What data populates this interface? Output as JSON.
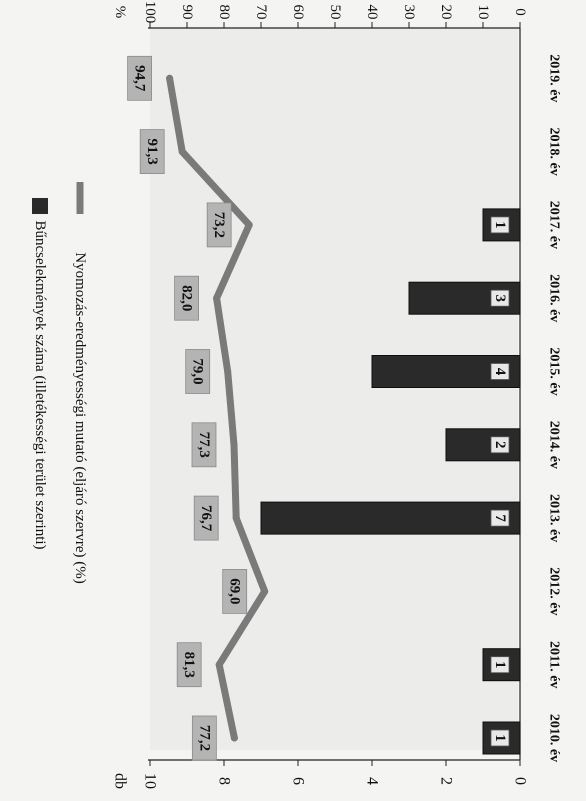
{
  "chart_data": {
    "type": "bar",
    "categories": [
      "2010. év",
      "2011. év",
      "2012. év",
      "2013. év",
      "2014. év",
      "2015. év",
      "2016. év",
      "2017. év",
      "2018. év",
      "2019. év"
    ],
    "series": [
      {
        "name": "Bűncselekmények száma (illetékességi terület szerinti)",
        "type": "bar",
        "axis": "left",
        "values": [
          1,
          1,
          0,
          7,
          2,
          4,
          3,
          1,
          0,
          0
        ],
        "labels": [
          "1",
          "1",
          "",
          "7",
          "2",
          "4",
          "3",
          "1",
          "",
          ""
        ],
        "color": "#2a2a2a"
      },
      {
        "name": "Nyomozás-eredményességi mutató (eljáró szervre) (%)",
        "type": "line",
        "axis": "right",
        "values": [
          77.2,
          81.3,
          69.0,
          76.7,
          77.3,
          79.0,
          82.0,
          73.2,
          91.3,
          94.7
        ],
        "labels": [
          "77,2",
          "81,3",
          "69,0",
          "76,7",
          "77,3",
          "79,0",
          "82,0",
          "73,2",
          "91,3",
          "94,7"
        ],
        "color": "#7a7a7a"
      }
    ],
    "left_axis": {
      "unit": "db",
      "ticks": [
        "0",
        "2",
        "4",
        "6",
        "8",
        "10"
      ],
      "min": 0,
      "max": 10
    },
    "right_axis": {
      "unit": "%",
      "ticks": [
        "0",
        "10",
        "20",
        "30",
        "40",
        "50",
        "60",
        "70",
        "80",
        "90",
        "100"
      ],
      "min": 0,
      "max": 100
    },
    "legend_position": "top",
    "grid": false,
    "orientation": "rotated 90° clockwise",
    "colors": {
      "bar": "#2a2a2a",
      "line": "#7a7a7a",
      "label_box": "#b4b4b4",
      "plot_bg": "#ececea"
    }
  }
}
